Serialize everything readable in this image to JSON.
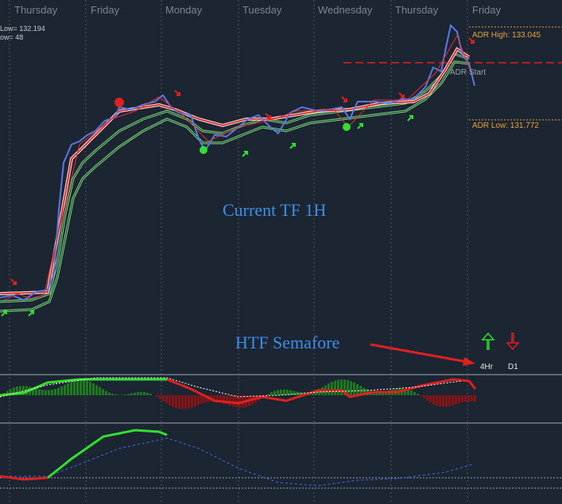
{
  "day_labels": [
    "Thursday",
    "Friday",
    "Monday",
    "Tuesday",
    "Wednesday",
    "Thursday",
    "Friday"
  ],
  "info": [
    "Low= 132.194",
    "ow= 48"
  ],
  "adr": {
    "high": "ADR High: 133.045",
    "low": "ADR Low: 131.772",
    "start": "ADR Start"
  },
  "annotations": {
    "current_tf": "Current TF 1H",
    "htf": "HTF Semafore"
  },
  "semafore_labels": [
    "4Hr",
    "D1"
  ]
}
